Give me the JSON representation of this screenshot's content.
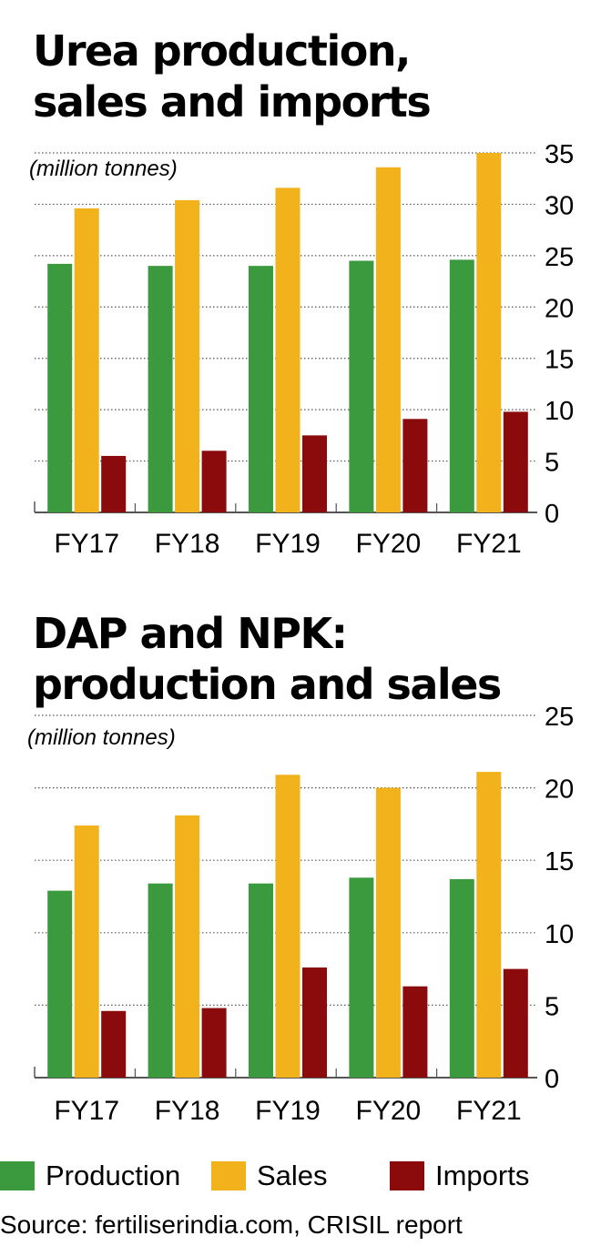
{
  "colors": {
    "production": "#3c9a3e",
    "sales": "#f2b21b",
    "imports": "#8b0a0c",
    "grid": "#555555",
    "axis": "#555555"
  },
  "chart_data": [
    {
      "type": "bar",
      "title_lines": [
        "Urea production,",
        "sales and imports"
      ],
      "unit_label": "(million tonnes)",
      "categories": [
        "FY17",
        "FY18",
        "FY19",
        "FY20",
        "FY21"
      ],
      "series": [
        {
          "name": "Production",
          "values": [
            24.2,
            24.0,
            24.0,
            24.5,
            24.6
          ]
        },
        {
          "name": "Sales",
          "values": [
            29.6,
            30.4,
            31.6,
            33.6,
            35.0
          ]
        },
        {
          "name": "Imports",
          "values": [
            5.5,
            6.0,
            7.5,
            9.1,
            9.8
          ]
        }
      ],
      "ylim": [
        0,
        35
      ],
      "yticks": [
        0,
        5,
        10,
        15,
        20,
        25,
        30,
        35
      ],
      "grid": true,
      "yaxis_side": "right"
    },
    {
      "type": "bar",
      "title_lines": [
        "DAP and NPK:",
        "production and sales"
      ],
      "unit_label": "(million tonnes)",
      "categories": [
        "FY17",
        "FY18",
        "FY19",
        "FY20",
        "FY21"
      ],
      "series": [
        {
          "name": "Production",
          "values": [
            12.9,
            13.4,
            13.4,
            13.8,
            13.7
          ]
        },
        {
          "name": "Sales",
          "values": [
            17.4,
            18.1,
            20.9,
            20.0,
            21.1
          ]
        },
        {
          "name": "Imports",
          "values": [
            4.6,
            4.8,
            7.6,
            6.3,
            7.5
          ]
        }
      ],
      "ylim": [
        0,
        25
      ],
      "yticks": [
        0,
        5,
        10,
        15,
        20,
        25
      ],
      "grid": true,
      "yaxis_side": "right"
    }
  ],
  "legend": {
    "items": [
      {
        "label": "Production",
        "color_key": "production"
      },
      {
        "label": "Sales",
        "color_key": "sales"
      },
      {
        "label": "Imports",
        "color_key": "imports"
      }
    ]
  },
  "source": "Source: fertiliserindia.com, CRISIL report"
}
